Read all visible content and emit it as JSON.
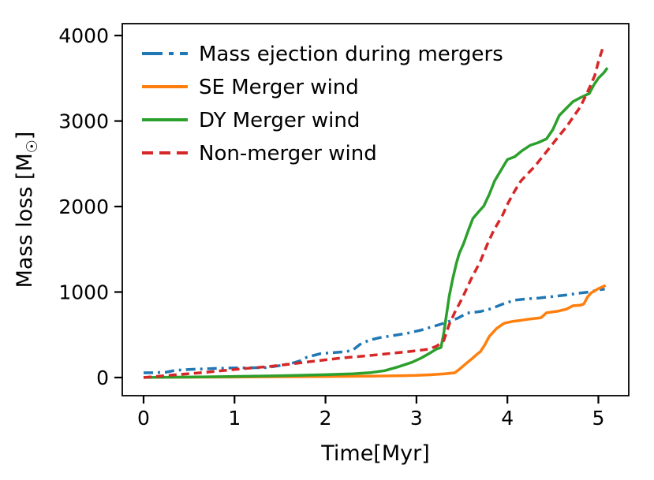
{
  "figure": {
    "xlabel": "Time[Myr]",
    "ylabel_prefix": "Mass loss [M",
    "ylabel_sub": "☉",
    "ylabel_suffix": "]"
  },
  "chart_data": {
    "type": "line",
    "title": "",
    "xlabel": "Time[Myr]",
    "ylabel": "Mass loss [M☉]",
    "xlim": [
      -0.234,
      5.334
    ],
    "ylim": [
      -212,
      4139
    ],
    "xticks": [
      0,
      1,
      2,
      3,
      4,
      5
    ],
    "yticks": [
      0,
      1000,
      2000,
      3000,
      4000
    ],
    "grid": false,
    "legend_position": "upper left",
    "legend_frame": false,
    "series": [
      {
        "name": "Mass ejection during mergers",
        "color": "#1f77b4",
        "style": "dashdot",
        "points": [
          [
            0,
            55
          ],
          [
            0.12,
            57
          ],
          [
            0.25,
            63
          ],
          [
            0.35,
            85
          ],
          [
            0.5,
            95
          ],
          [
            0.62,
            100
          ],
          [
            0.8,
            107
          ],
          [
            0.95,
            112
          ],
          [
            1.15,
            114
          ],
          [
            1.35,
            116
          ],
          [
            1.5,
            140
          ],
          [
            1.62,
            163
          ],
          [
            1.72,
            195
          ],
          [
            1.8,
            240
          ],
          [
            1.95,
            280
          ],
          [
            2.1,
            292
          ],
          [
            2.22,
            302
          ],
          [
            2.3,
            322
          ],
          [
            2.38,
            388
          ],
          [
            2.48,
            437
          ],
          [
            2.6,
            467
          ],
          [
            2.75,
            492
          ],
          [
            2.9,
            518
          ],
          [
            3.05,
            555
          ],
          [
            3.2,
            602
          ],
          [
            3.32,
            642
          ],
          [
            3.45,
            692
          ],
          [
            3.56,
            755
          ],
          [
            3.7,
            772
          ],
          [
            3.82,
            805
          ],
          [
            3.95,
            860
          ],
          [
            4.08,
            905
          ],
          [
            4.2,
            918
          ],
          [
            4.35,
            930
          ],
          [
            4.5,
            948
          ],
          [
            4.65,
            965
          ],
          [
            4.78,
            985
          ],
          [
            4.9,
            1000
          ],
          [
            5.0,
            1025
          ],
          [
            5.07,
            1034
          ]
        ]
      },
      {
        "name": "SE Merger wind",
        "color": "#ff7f0e",
        "style": "solid",
        "points": [
          [
            0,
            2
          ],
          [
            0.5,
            4
          ],
          [
            1.0,
            6
          ],
          [
            1.5,
            9
          ],
          [
            2.0,
            12
          ],
          [
            2.5,
            16
          ],
          [
            2.8,
            20
          ],
          [
            3.0,
            25
          ],
          [
            3.15,
            32
          ],
          [
            3.3,
            42
          ],
          [
            3.42,
            55
          ],
          [
            3.47,
            95
          ],
          [
            3.52,
            140
          ],
          [
            3.57,
            185
          ],
          [
            3.62,
            230
          ],
          [
            3.68,
            285
          ],
          [
            3.7,
            300
          ],
          [
            3.75,
            380
          ],
          [
            3.8,
            480
          ],
          [
            3.88,
            573
          ],
          [
            3.95,
            625
          ],
          [
            3.97,
            637
          ],
          [
            4.05,
            655
          ],
          [
            4.12,
            665
          ],
          [
            4.25,
            685
          ],
          [
            4.37,
            700
          ],
          [
            4.43,
            758
          ],
          [
            4.55,
            775
          ],
          [
            4.65,
            800
          ],
          [
            4.72,
            840
          ],
          [
            4.8,
            845
          ],
          [
            4.84,
            860
          ],
          [
            4.88,
            940
          ],
          [
            4.92,
            990
          ],
          [
            5.0,
            1040
          ],
          [
            5.08,
            1078
          ]
        ]
      },
      {
        "name": "DY Merger wind",
        "color": "#2ca02c",
        "style": "solid",
        "points": [
          [
            0,
            1
          ],
          [
            0.5,
            6
          ],
          [
            1.0,
            13
          ],
          [
            1.5,
            21
          ],
          [
            2.0,
            33
          ],
          [
            2.3,
            43
          ],
          [
            2.5,
            58
          ],
          [
            2.65,
            80
          ],
          [
            2.8,
            125
          ],
          [
            2.95,
            178
          ],
          [
            3.05,
            228
          ],
          [
            3.15,
            288
          ],
          [
            3.22,
            333
          ],
          [
            3.27,
            352
          ],
          [
            3.3,
            520
          ],
          [
            3.33,
            730
          ],
          [
            3.36,
            950
          ],
          [
            3.4,
            1160
          ],
          [
            3.44,
            1340
          ],
          [
            3.47,
            1450
          ],
          [
            3.52,
            1570
          ],
          [
            3.57,
            1720
          ],
          [
            3.62,
            1860
          ],
          [
            3.68,
            1935
          ],
          [
            3.74,
            2005
          ],
          [
            3.8,
            2140
          ],
          [
            3.86,
            2300
          ],
          [
            3.93,
            2425
          ],
          [
            4.0,
            2550
          ],
          [
            4.08,
            2582
          ],
          [
            4.16,
            2652
          ],
          [
            4.25,
            2716
          ],
          [
            4.34,
            2748
          ],
          [
            4.43,
            2792
          ],
          [
            4.5,
            2900
          ],
          [
            4.57,
            3065
          ],
          [
            4.65,
            3152
          ],
          [
            4.72,
            3226
          ],
          [
            4.8,
            3272
          ],
          [
            4.9,
            3322
          ],
          [
            4.95,
            3422
          ],
          [
            5.0,
            3502
          ],
          [
            5.06,
            3565
          ],
          [
            5.1,
            3622
          ]
        ]
      },
      {
        "name": "Non-merger wind",
        "color": "#d62728",
        "style": "dashed",
        "points": [
          [
            0,
            0
          ],
          [
            0.3,
            28
          ],
          [
            0.65,
            58
          ],
          [
            1.05,
            100
          ],
          [
            1.4,
            131
          ],
          [
            1.8,
            182
          ],
          [
            2.15,
            226
          ],
          [
            2.5,
            259
          ],
          [
            2.8,
            291
          ],
          [
            3.0,
            313
          ],
          [
            3.13,
            331
          ],
          [
            3.22,
            366
          ],
          [
            3.3,
            432
          ],
          [
            3.36,
            620
          ],
          [
            3.42,
            760
          ],
          [
            3.5,
            920
          ],
          [
            3.6,
            1150
          ],
          [
            3.7,
            1352
          ],
          [
            3.78,
            1560
          ],
          [
            3.85,
            1722
          ],
          [
            3.95,
            1905
          ],
          [
            4.0,
            2026
          ],
          [
            4.08,
            2182
          ],
          [
            4.15,
            2302
          ],
          [
            4.3,
            2470
          ],
          [
            4.43,
            2642
          ],
          [
            4.57,
            2830
          ],
          [
            4.65,
            2932
          ],
          [
            4.72,
            3042
          ],
          [
            4.8,
            3162
          ],
          [
            4.86,
            3292
          ],
          [
            4.92,
            3432
          ],
          [
            4.96,
            3532
          ],
          [
            5.0,
            3692
          ],
          [
            5.03,
            3792
          ],
          [
            5.06,
            3890
          ]
        ]
      }
    ]
  }
}
